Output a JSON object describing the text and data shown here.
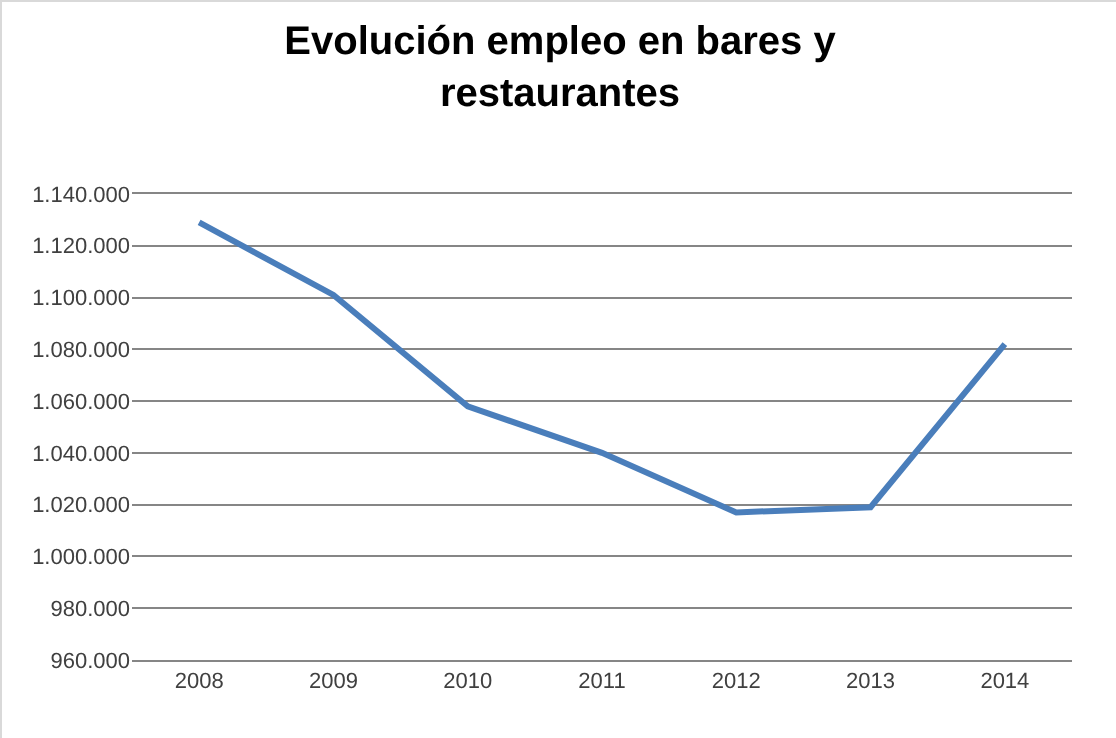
{
  "chart_data": {
    "type": "line",
    "title": "Evolución empleo en bares y restaurantes",
    "categories": [
      "2008",
      "2009",
      "2010",
      "2011",
      "2012",
      "2013",
      "2014"
    ],
    "series": [
      {
        "color": "#4a7ebb",
        "values": [
          1129000,
          1101000,
          1058000,
          1040000,
          1017000,
          1019000,
          1082000
        ]
      }
    ],
    "ylim": [
      960000,
      1140000
    ],
    "yticks": [
      {
        "value": 960000,
        "label": "960.000"
      },
      {
        "value": 980000,
        "label": "980.000"
      },
      {
        "value": 1000000,
        "label": "1.000.000"
      },
      {
        "value": 1020000,
        "label": "1.020.000"
      },
      {
        "value": 1040000,
        "label": "1.040.000"
      },
      {
        "value": 1060000,
        "label": "1.060.000"
      },
      {
        "value": 1080000,
        "label": "1.080.000"
      },
      {
        "value": 1100000,
        "label": "1.100.000"
      },
      {
        "value": 1120000,
        "label": "1.120.000"
      },
      {
        "value": 1140000,
        "label": "1.140.000"
      }
    ],
    "grid": "y",
    "marker": "none",
    "line_style": "solid"
  }
}
